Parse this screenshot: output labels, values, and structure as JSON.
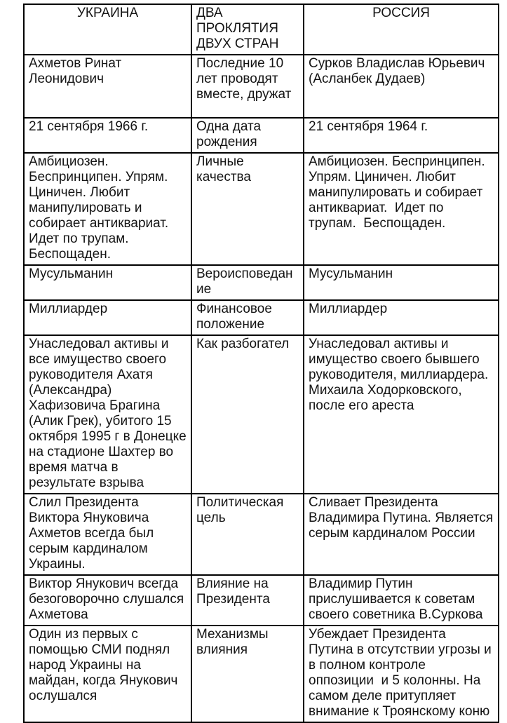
{
  "table": {
    "headers": [
      "УКРАИНА",
      "ДВА ПРОКЛЯТИЯ ДВУХ СТРАН",
      "РОССИЯ"
    ],
    "rows": [
      {
        "ukraine": "Ахметов Ринат Леонидович",
        "category": "Последние 10 лет проводят вместе, дружат",
        "russia": "Сурков Владислав Юрьевич (Асланбек Дудаев)"
      },
      {
        "ukraine": "21 сентября 1966 г.",
        "category": "Одна дата рождения",
        "russia": "21 сентября 1964 г."
      },
      {
        "ukraine": "Амбициозен. Беспринципен. Упрям. Циничен. Любит манипулировать и собирает антиквариат. Идет по трупам. Беспощаден.",
        "category": "Личные качества",
        "russia": "Амбициозен. Беспринципен. Упрям. Циничен. Любит манипулировать и собирает антиквариат.  Идет по трупам.  Беспощаден."
      },
      {
        "ukraine": "Мусульманин",
        "category": "Вероисповедание",
        "russia": "Мусульманин"
      },
      {
        "ukraine": "Миллиардер",
        "category": "Финансовое положение",
        "russia": "Миллиардер"
      },
      {
        "ukraine": "Унаследовал активы и все имущество своего руководителя Ахатя (Александра) Хафизовича Брагина (Алик Грек), убитого 15 октября 1995 г в Донецке на стадионе Шахтер во время матча в результате взрыва",
        "category": "Как разбогател",
        "russia": "Унаследовал активы и имущество своего бывшего руководителя, миллиардера. Михаила Ходорковского, после его ареста"
      },
      {
        "ukraine": "Слил Президента Виктора Януковича Ахметов всегда был серым кардиналом Украины.",
        "category": "Политическая цель",
        "russia": "Сливает Президента Владимира Путина. Является серым кардиналом России"
      },
      {
        "ukraine": "Виктор Янукович всегда безоговорочно слушался Ахметова",
        "category": "Влияние на Президента",
        "russia": "Владимир Путин прислушивается к советам своего советника В.Суркова"
      },
      {
        "ukraine": "Один из первых с помощью СМИ поднял народ Украины на майдан, когда Янукович ослушался",
        "category": "Механизмы влияния",
        "russia": "Убеждает Президента Путина в отсутствии угрозы и в полном контроле оппозиции  и 5 колонны. На самом деле притупляет внимание к Троянскому коню"
      }
    ]
  }
}
